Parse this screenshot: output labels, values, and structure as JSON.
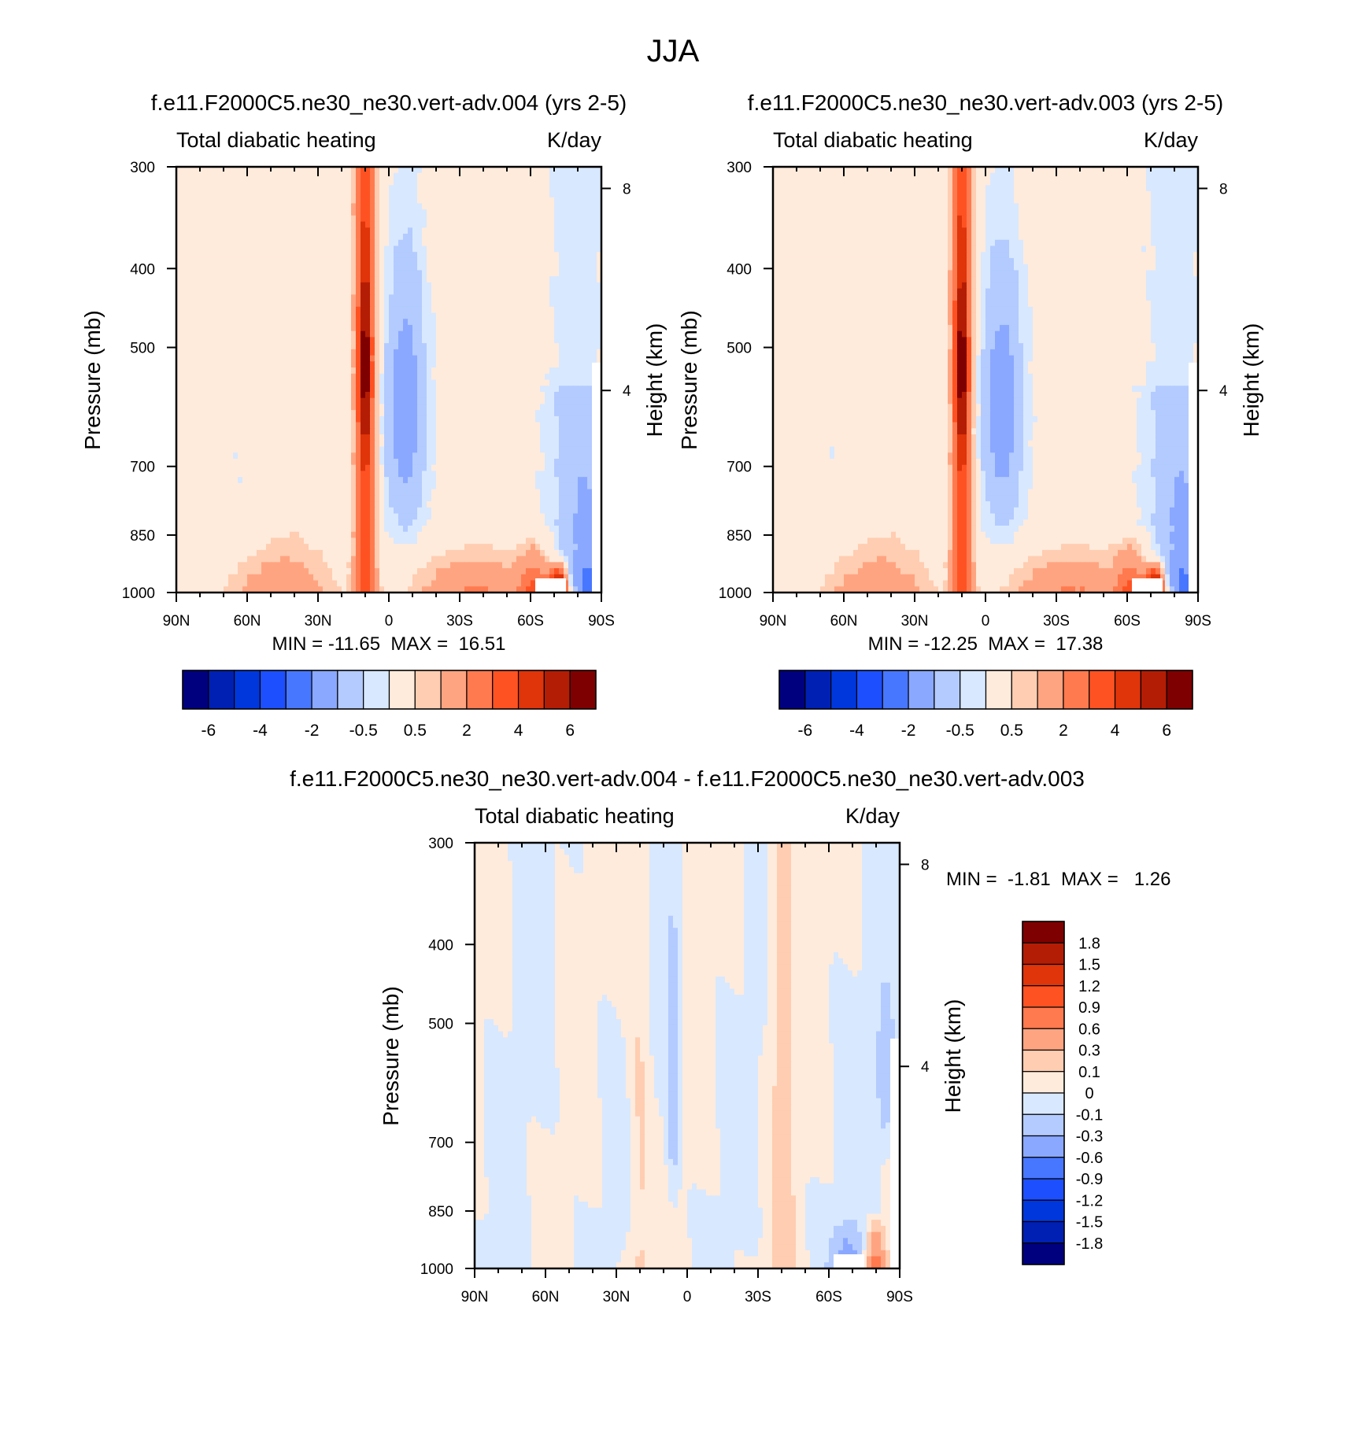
{
  "figure_title": "JJA",
  "chart_data": [
    {
      "type": "heatmap",
      "title": "f.e11.F2000C5.ne30_ne30.vert-adv.004 (yrs 2-5)",
      "variable": "Total diabatic heating",
      "units": "K/day",
      "ylabel": "Pressure (mb)",
      "y2label": "Height (km)",
      "x_ticks": [
        "90N",
        "60N",
        "30N",
        "0",
        "30S",
        "60S",
        "90S"
      ],
      "y_ticks": [
        "300",
        "400",
        "500",
        "700",
        "850",
        "1000"
      ],
      "y_tick_values": [
        300,
        400,
        500,
        700,
        850,
        1000
      ],
      "y2_ticks": [
        "8",
        "4"
      ],
      "y2_tick_values": [
        8,
        4
      ],
      "xlim": [
        "90N",
        "90S"
      ],
      "ylim": [
        1000,
        300
      ],
      "stats": "MIN = -11.65  MAX =  16.51",
      "min": -11.65,
      "max": 16.51,
      "colorbar": {
        "orientation": "horizontal",
        "labels": [
          "-6",
          "-4",
          "-2",
          "-0.5",
          "0.5",
          "2",
          "4",
          "6"
        ],
        "colors": [
          "#00007f",
          "#0020b3",
          "#0037dd",
          "#1d4fff",
          "#4877ff",
          "#8aa8ff",
          "#b3cbff",
          "#d8e8ff",
          "#ffebdc",
          "#ffcdb1",
          "#ffa481",
          "#ff7a4f",
          "#ff5223",
          "#e0340a",
          "#b41d05",
          "#7f0000"
        ]
      }
    },
    {
      "type": "heatmap",
      "title": "f.e11.F2000C5.ne30_ne30.vert-adv.003 (yrs 2-5)",
      "variable": "Total diabatic heating",
      "units": "K/day",
      "ylabel": "Pressure (mb)",
      "y2label": "Height (km)",
      "x_ticks": [
        "90N",
        "60N",
        "30N",
        "0",
        "30S",
        "60S",
        "90S"
      ],
      "y_ticks": [
        "300",
        "400",
        "500",
        "700",
        "850",
        "1000"
      ],
      "y_tick_values": [
        300,
        400,
        500,
        700,
        850,
        1000
      ],
      "y2_ticks": [
        "8",
        "4"
      ],
      "y2_tick_values": [
        8,
        4
      ],
      "xlim": [
        "90N",
        "90S"
      ],
      "ylim": [
        1000,
        300
      ],
      "stats": "MIN = -12.25  MAX =  17.38",
      "min": -12.25,
      "max": 17.38,
      "colorbar": {
        "orientation": "horizontal",
        "labels": [
          "-6",
          "-4",
          "-2",
          "-0.5",
          "0.5",
          "2",
          "4",
          "6"
        ],
        "colors": [
          "#00007f",
          "#0020b3",
          "#0037dd",
          "#1d4fff",
          "#4877ff",
          "#8aa8ff",
          "#b3cbff",
          "#d8e8ff",
          "#ffebdc",
          "#ffcdb1",
          "#ffa481",
          "#ff7a4f",
          "#ff5223",
          "#e0340a",
          "#b41d05",
          "#7f0000"
        ]
      }
    },
    {
      "type": "heatmap",
      "title": "f.e11.F2000C5.ne30_ne30.vert-adv.004 - f.e11.F2000C5.ne30_ne30.vert-adv.003",
      "variable": "Total diabatic heating",
      "units": "K/day",
      "ylabel": "Pressure (mb)",
      "y2label": "Height (km)",
      "x_ticks": [
        "90N",
        "60N",
        "30N",
        "0",
        "30S",
        "60S",
        "90S"
      ],
      "y_ticks": [
        "300",
        "400",
        "500",
        "700",
        "850",
        "1000"
      ],
      "y_tick_values": [
        300,
        400,
        500,
        700,
        850,
        1000
      ],
      "y2_ticks": [
        "8",
        "4"
      ],
      "y2_tick_values": [
        8,
        4
      ],
      "xlim": [
        "90N",
        "90S"
      ],
      "ylim": [
        1000,
        300
      ],
      "stats": "MIN =  -1.81  MAX =   1.26",
      "min": -1.81,
      "max": 1.26,
      "colorbar": {
        "orientation": "vertical",
        "labels": [
          "1.8",
          "1.5",
          "1.2",
          "0.9",
          "0.6",
          "0.3",
          "0.1",
          "0",
          "-0.1",
          "-0.3",
          "-0.6",
          "-0.9",
          "-1.2",
          "-1.5",
          "-1.8"
        ],
        "colors": [
          "#7f0000",
          "#b41d05",
          "#e0340a",
          "#ff5223",
          "#ff7a4f",
          "#ffa481",
          "#ffcdb1",
          "#ffebdc",
          "#d8e8ff",
          "#b3cbff",
          "#8aa8ff",
          "#4877ff",
          "#1d4fff",
          "#0037dd",
          "#0020b3",
          "#00007f"
        ]
      }
    }
  ]
}
